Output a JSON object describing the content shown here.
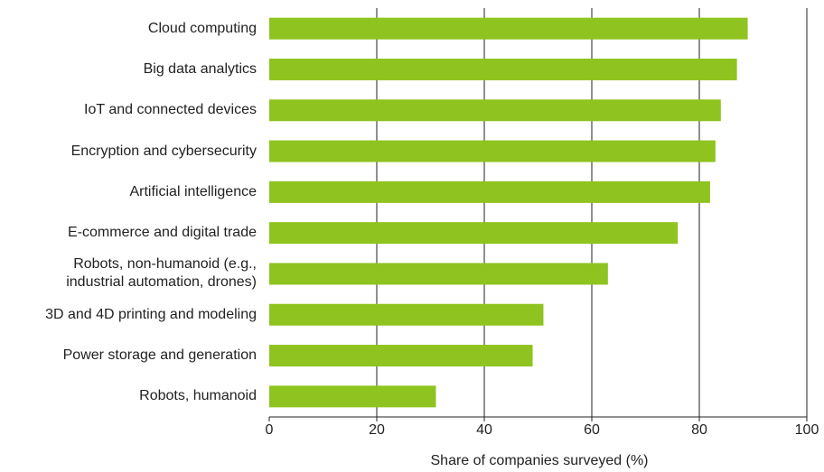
{
  "chart_data": {
    "type": "bar",
    "orientation": "horizontal",
    "x_label": "Share of companies surveyed (%)",
    "categories": [
      "Cloud computing",
      "Big data analytics",
      "IoT and connected devices",
      "Encryption and cybersecurity",
      "Artificial intelligence",
      "E-commerce and digital trade",
      "Robots, non-humanoid (e.g.,\nindustrial automation, drones)",
      "3D and 4D printing and modeling",
      "Power storage and generation",
      "Robots, humanoid"
    ],
    "values": [
      89,
      87,
      84,
      83,
      82,
      76,
      63,
      51,
      49,
      31
    ],
    "color": "#8fc31f",
    "xlim": [
      0,
      100
    ],
    "xticks": [
      0,
      20,
      40,
      60,
      80,
      100
    ],
    "grid": true
  }
}
